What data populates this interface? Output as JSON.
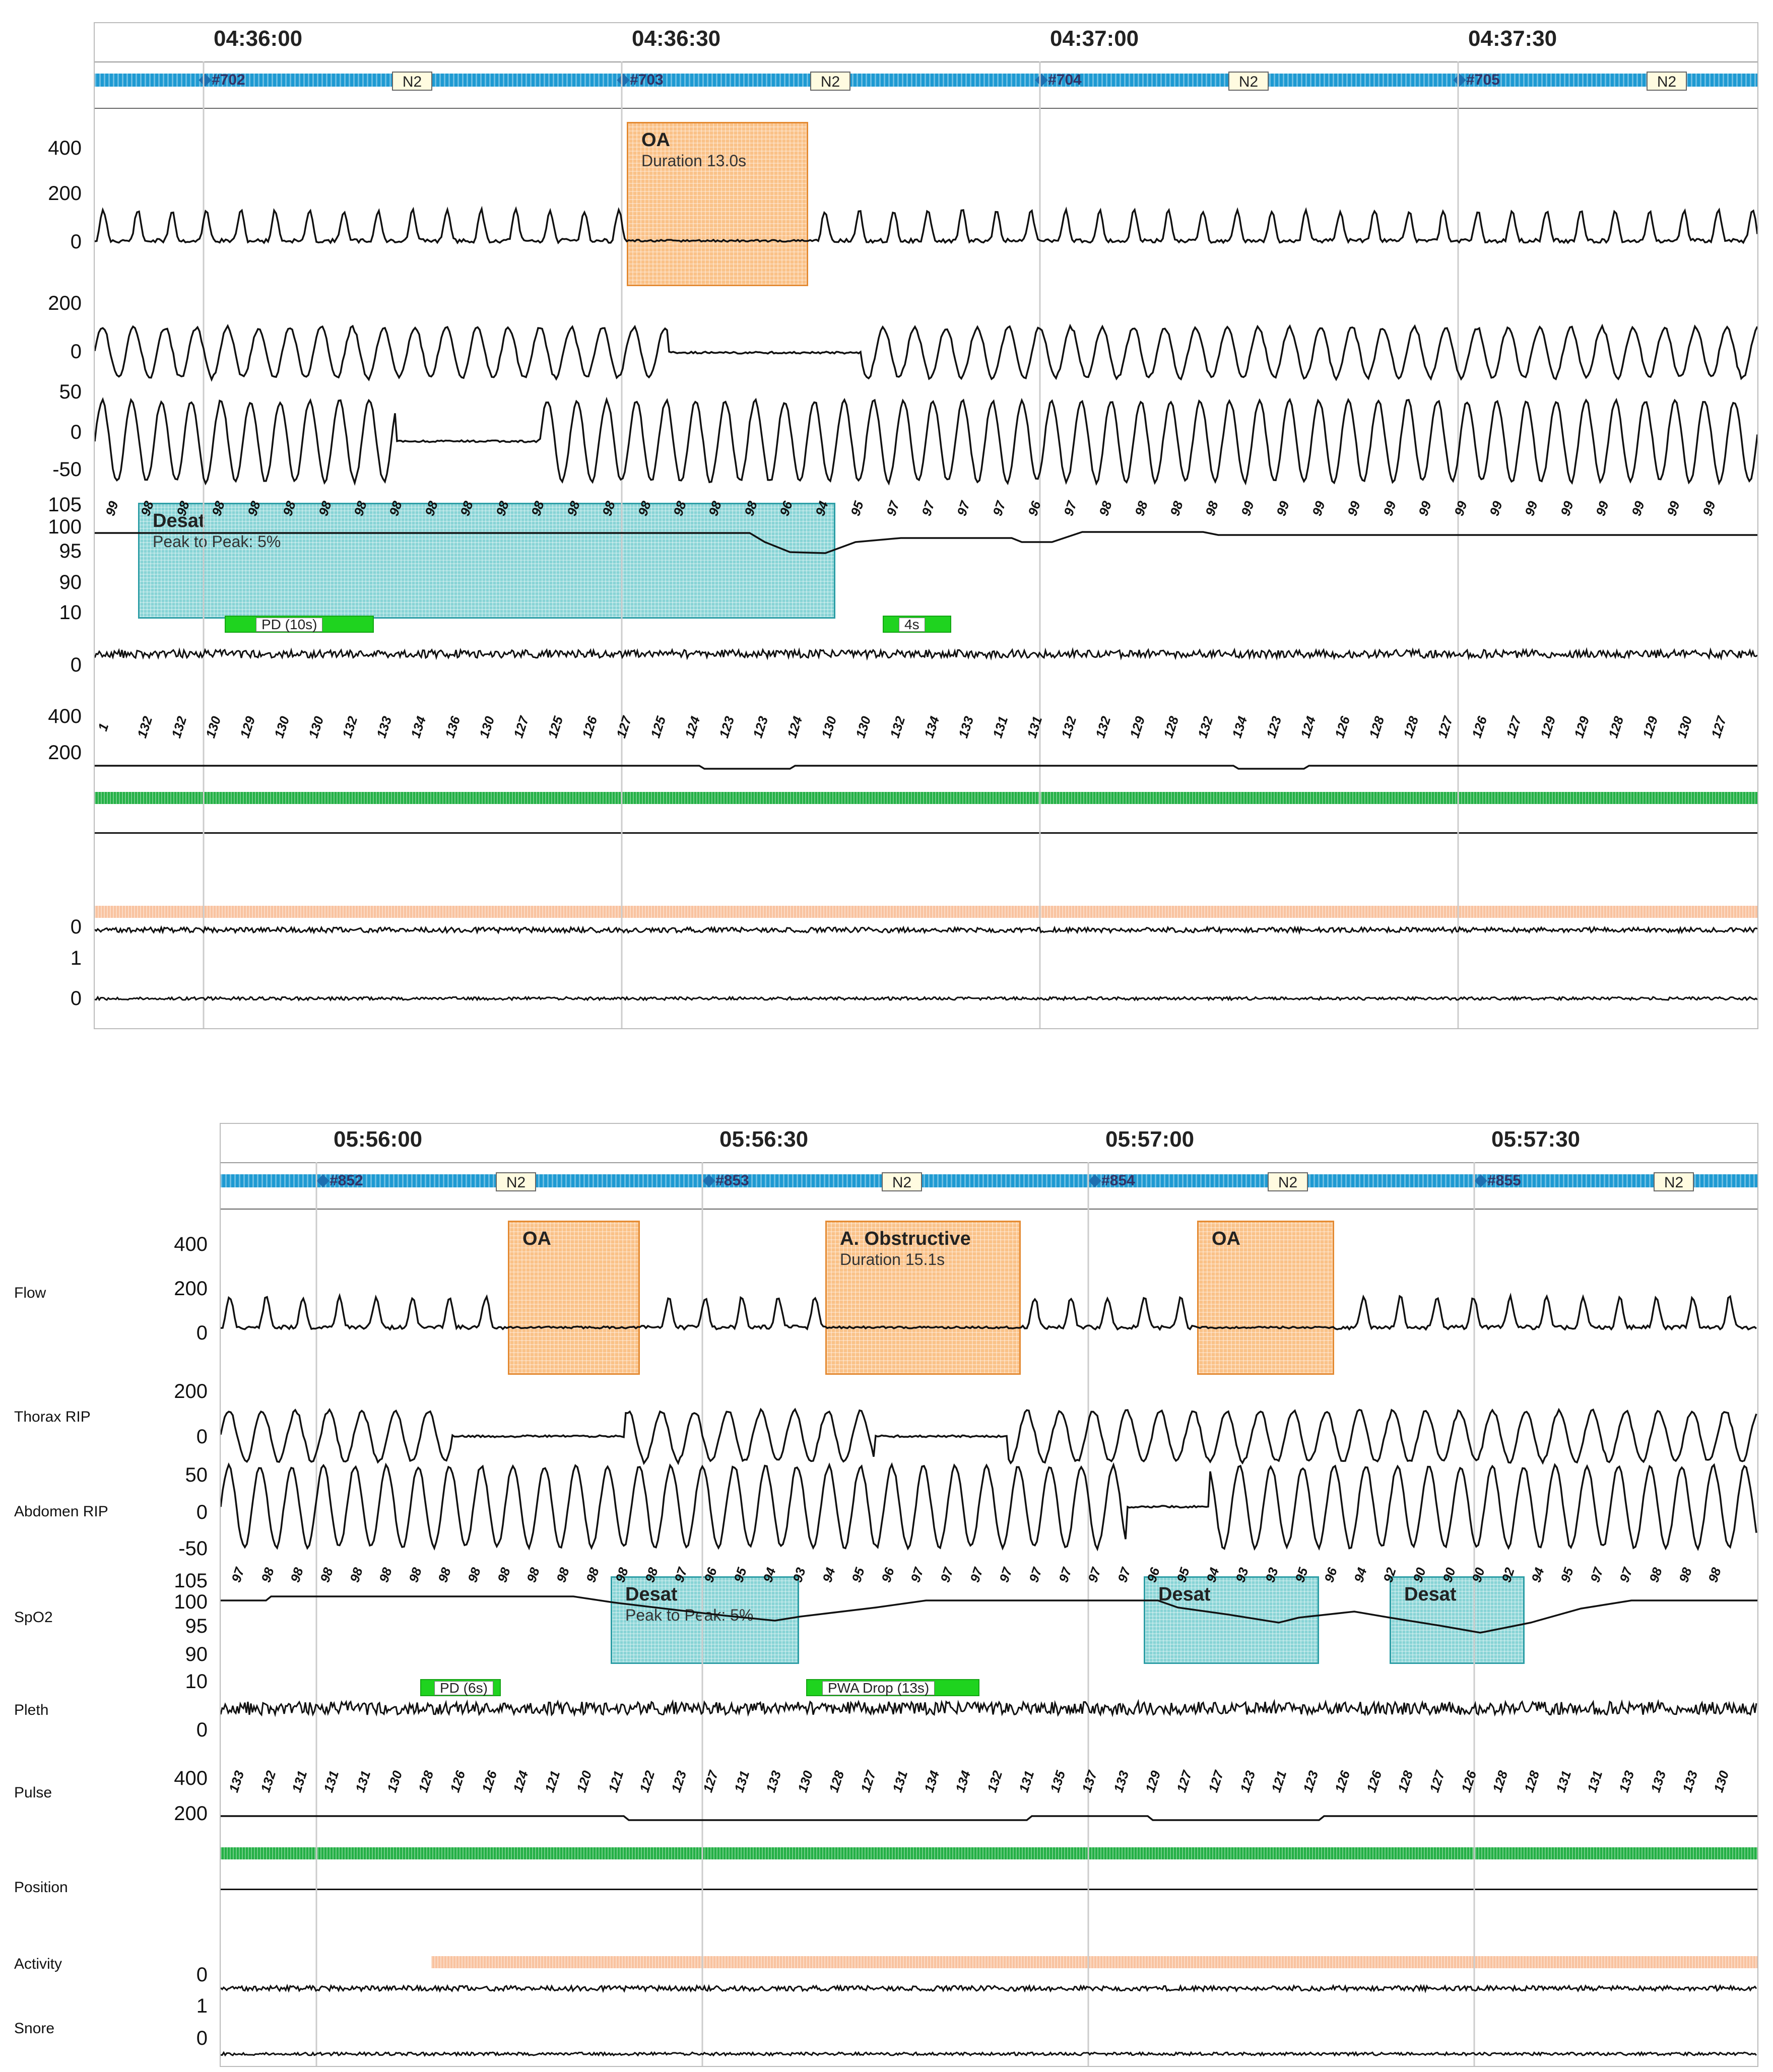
{
  "panels": [
    {
      "times": [
        "04:36:00",
        "04:36:30",
        "04:37:00",
        "04:37:30"
      ],
      "epochs": [
        "#702",
        "#703",
        "#704",
        "#705"
      ],
      "stages": [
        "N2",
        "N2",
        "N2",
        "N2"
      ],
      "axis": {
        "flow": [
          "400",
          "200",
          "0"
        ],
        "thorax": [
          "200",
          "0"
        ],
        "abdomen": [
          "50",
          "0",
          "-50"
        ],
        "spo2": [
          "105",
          "100",
          "95",
          "90"
        ],
        "pleth": [
          "10",
          "0"
        ],
        "pulse": [
          "400",
          "200"
        ],
        "activity": [
          "0"
        ],
        "snore": [
          "1",
          "0"
        ]
      },
      "events": {
        "oa1": {
          "title": "OA",
          "sub": "Duration 13.0s"
        },
        "desat1": {
          "title": "Desat",
          "sub": "Peak to Peak: 5%"
        },
        "pd": "PD (10s)",
        "tag4s": "4s"
      },
      "spo2_values": [
        "99",
        "98",
        "98",
        "98",
        "98",
        "98",
        "98",
        "98",
        "98",
        "98",
        "98",
        "98",
        "98",
        "98",
        "98",
        "98",
        "98",
        "98",
        "98",
        "96",
        "94",
        "95",
        "97",
        "97",
        "97",
        "97",
        "96",
        "97",
        "98",
        "98",
        "98",
        "98",
        "99",
        "99",
        "99",
        "99",
        "99",
        "99",
        "99",
        "99",
        "99",
        "99",
        "99",
        "99",
        "99",
        "99"
      ],
      "pulse_values": [
        "1",
        "132",
        "132",
        "130",
        "129",
        "130",
        "130",
        "132",
        "133",
        "134",
        "136",
        "130",
        "127",
        "125",
        "126",
        "127",
        "125",
        "124",
        "123",
        "123",
        "124",
        "130",
        "130",
        "132",
        "134",
        "133",
        "131",
        "131",
        "132",
        "132",
        "129",
        "128",
        "132",
        "134",
        "123",
        "124",
        "126",
        "128",
        "128",
        "127",
        "126",
        "127",
        "129",
        "129",
        "128",
        "129",
        "130",
        "127"
      ]
    },
    {
      "times": [
        "05:56:00",
        "05:56:30",
        "05:57:00",
        "05:57:30"
      ],
      "epochs": [
        "#852",
        "#853",
        "#854",
        "#855"
      ],
      "stages": [
        "N2",
        "N2",
        "N2",
        "N2"
      ],
      "axis": {
        "flow": [
          "400",
          "200",
          "0"
        ],
        "thorax": [
          "200",
          "0"
        ],
        "abdomen": [
          "50",
          "0",
          "-50"
        ],
        "spo2": [
          "105",
          "100",
          "95",
          "90"
        ],
        "pleth": [
          "10",
          "0"
        ],
        "pulse": [
          "400",
          "200"
        ],
        "activity": [
          "0"
        ],
        "snore": [
          "1",
          "0"
        ]
      },
      "events": {
        "oa1": {
          "title": "OA"
        },
        "oa2": {
          "title": "A. Obstructive",
          "sub": "Duration 15.1s"
        },
        "oa3": {
          "title": "OA"
        },
        "desat1": {
          "title": "Desat",
          "sub": "Peak to Peak: 5%"
        },
        "desat2": {
          "title": "Desat"
        },
        "desat3": {
          "title": "Desat"
        },
        "pd": "PD (6s)",
        "pwa": "PWA Drop (13s)"
      },
      "spo2_values": [
        "97",
        "98",
        "98",
        "98",
        "98",
        "98",
        "98",
        "98",
        "98",
        "98",
        "98",
        "98",
        "98",
        "98",
        "98",
        "97",
        "96",
        "95",
        "94",
        "93",
        "94",
        "95",
        "96",
        "97",
        "97",
        "97",
        "97",
        "97",
        "97",
        "97",
        "97",
        "96",
        "95",
        "94",
        "93",
        "93",
        "95",
        "96",
        "94",
        "92",
        "90",
        "90",
        "90",
        "92",
        "94",
        "95",
        "97",
        "97",
        "98",
        "98",
        "98"
      ],
      "pulse_values": [
        "133",
        "132",
        "131",
        "131",
        "131",
        "130",
        "128",
        "126",
        "126",
        "124",
        "121",
        "120",
        "121",
        "122",
        "123",
        "127",
        "131",
        "133",
        "130",
        "128",
        "127",
        "131",
        "134",
        "134",
        "132",
        "131",
        "135",
        "137",
        "133",
        "129",
        "127",
        "127",
        "123",
        "121",
        "123",
        "126",
        "126",
        "128",
        "127",
        "126",
        "128",
        "128",
        "131",
        "131",
        "133",
        "133",
        "133",
        "130"
      ]
    }
  ],
  "channels": [
    "Flow",
    "Thorax RIP",
    "Abdomen RIP",
    "SpO2",
    "Pleth",
    "Pulse",
    "Position",
    "Activity",
    "Snore"
  ],
  "colors": {
    "oa": "#f8aa5a",
    "desat": "#60c6c8",
    "hypnogram": "#1e9ad2",
    "position": "#24b046",
    "activity": "#f9c3a0"
  }
}
